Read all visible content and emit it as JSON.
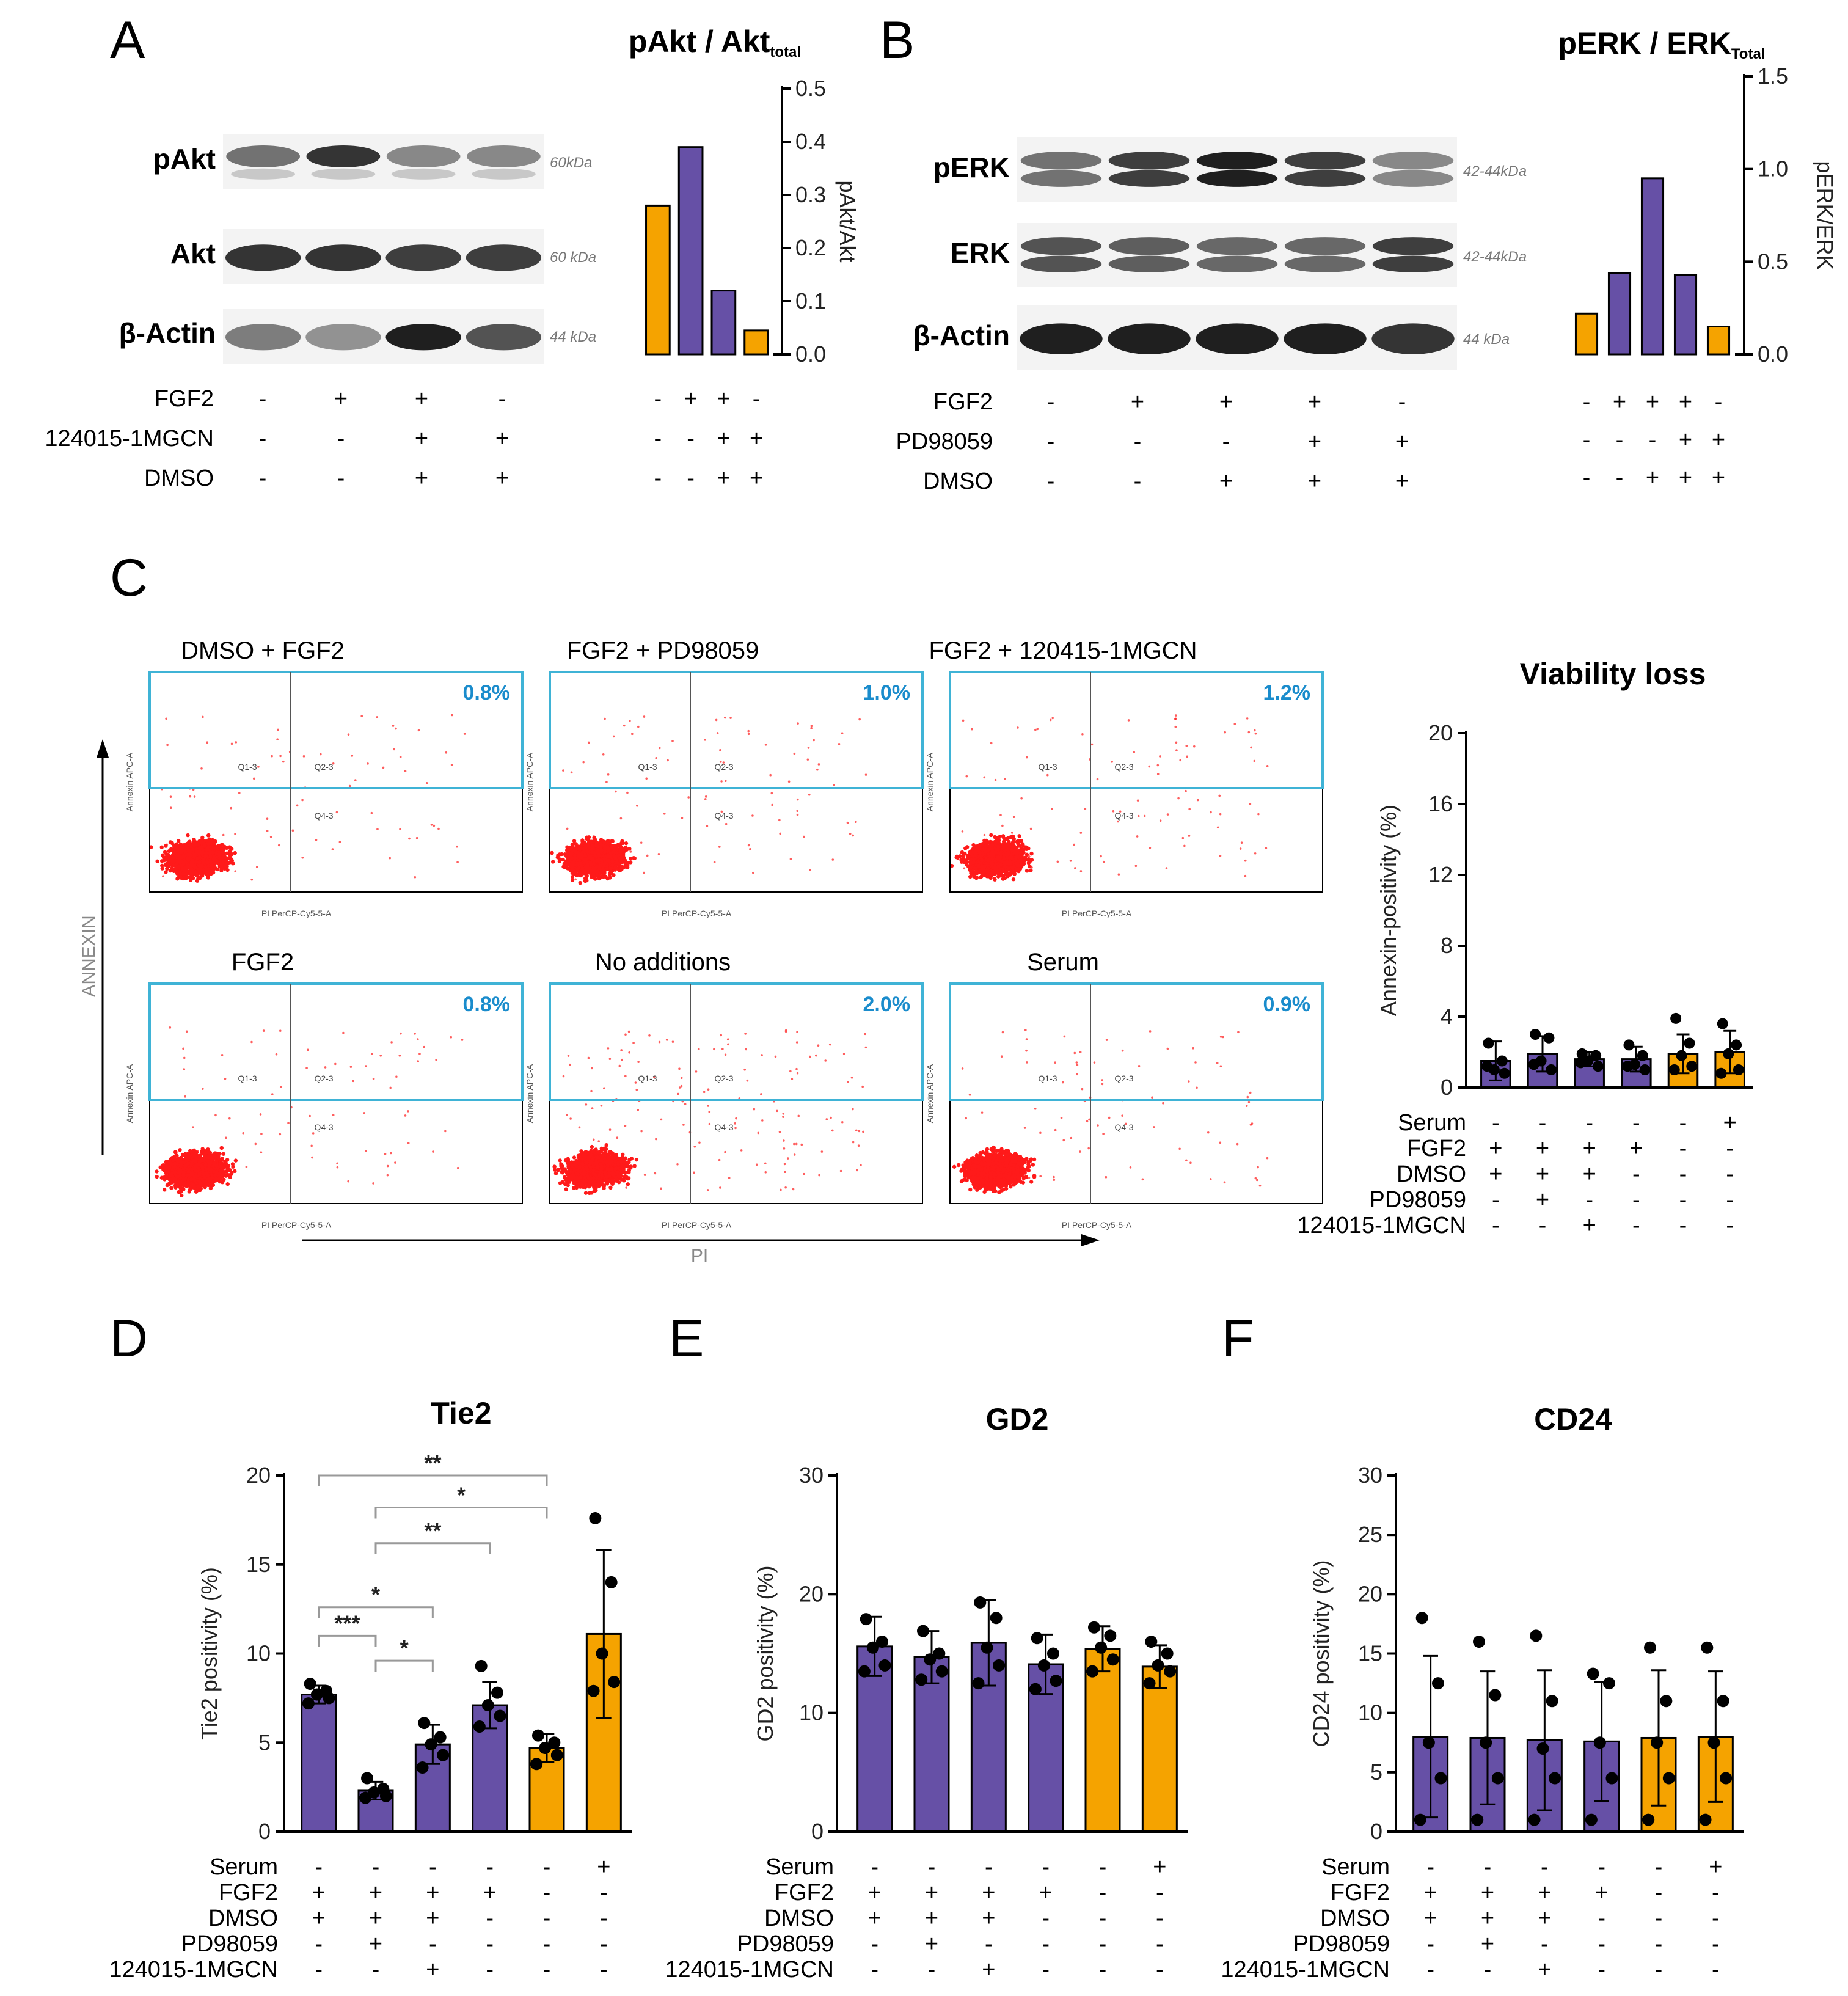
{
  "chart_data": [
    {
      "panel": "A",
      "type": "bar",
      "title_main": "pAkt / Akt",
      "title_sub": "total",
      "ylabel": "pAkt/Akt",
      "ylim": [
        0,
        0.5
      ],
      "yticks": [
        "0.0",
        "0.1",
        "0.2",
        "0.3",
        "0.4",
        "0.5"
      ],
      "values": [
        0.28,
        0.39,
        0.12,
        0.045
      ],
      "colors": [
        "#f5a300",
        "#6650a6",
        "#6650a6",
        "#f5a300"
      ],
      "conditions": [
        {
          "label": "FGF2",
          "signs": [
            "-",
            "+",
            "+",
            "-"
          ]
        },
        {
          "label": "124015-1MGCN",
          "signs": [
            "-",
            "-",
            "+",
            "+"
          ]
        },
        {
          "label": "DMSO",
          "signs": [
            "-",
            "-",
            "+",
            "+"
          ]
        }
      ],
      "blot_bands": [
        {
          "name": "pAkt",
          "kda": "60kDa"
        },
        {
          "name": "Akt",
          "kda": "60 kDa"
        },
        {
          "name": "β-Actin",
          "kda": "44 kDa"
        }
      ]
    },
    {
      "panel": "B",
      "type": "bar",
      "title_main": "pERK / ERK",
      "title_sub": "Total",
      "ylabel": "pERK/ERK",
      "ylim": [
        0,
        1.5
      ],
      "yticks": [
        "0.0",
        "0.5",
        "1.0",
        "1.5"
      ],
      "values": [
        0.22,
        0.44,
        0.95,
        0.43,
        0.15
      ],
      "colors": [
        "#f5a300",
        "#6650a6",
        "#6650a6",
        "#6650a6",
        "#f5a300"
      ],
      "conditions": [
        {
          "label": "FGF2",
          "signs": [
            "-",
            "+",
            "+",
            "+",
            "-"
          ]
        },
        {
          "label": "PD98059",
          "signs": [
            "-",
            "-",
            "-",
            "+",
            "+"
          ]
        },
        {
          "label": "DMSO",
          "signs": [
            "-",
            "-",
            "+",
            "+",
            "+"
          ]
        }
      ],
      "blot_bands": [
        {
          "name": "pERK",
          "kda": "42-44kDa"
        },
        {
          "name": "ERK",
          "kda": "42-44kDa"
        },
        {
          "name": "β-Actin",
          "kda": "44 kDa"
        }
      ]
    },
    {
      "panel": "C",
      "type": "bar",
      "title": "Viability loss",
      "ylabel": "Annexin-positivity (%)",
      "ylim": [
        0,
        20
      ],
      "yticks": [
        "0",
        "4",
        "8",
        "12",
        "16",
        "20"
      ],
      "values": [
        1.5,
        1.9,
        1.6,
        1.6,
        1.9,
        2.0
      ],
      "errors": [
        1.1,
        1.0,
        0.4,
        0.7,
        1.1,
        1.2
      ],
      "points": [
        [
          2.5,
          1.5,
          1.0,
          0.8,
          1.2
        ],
        [
          3.0,
          2.8,
          1.5,
          1.0,
          1.3
        ],
        [
          1.9,
          1.8,
          1.5,
          1.2,
          1.4
        ],
        [
          2.4,
          1.8,
          1.3,
          1.0,
          1.2
        ],
        [
          3.9,
          2.5,
          1.8,
          1.2,
          1.0
        ],
        [
          3.6,
          2.4,
          1.9,
          1.0,
          0.8
        ]
      ],
      "colors": [
        "#6650a6",
        "#6650a6",
        "#6650a6",
        "#6650a6",
        "#f5a300",
        "#f5a300"
      ],
      "conditions": [
        {
          "label": "Serum",
          "signs": [
            "-",
            "-",
            "-",
            "-",
            "-",
            "+"
          ]
        },
        {
          "label": "FGF2",
          "signs": [
            "+",
            "+",
            "+",
            "+",
            "-",
            "-"
          ]
        },
        {
          "label": "DMSO",
          "signs": [
            "+",
            "+",
            "+",
            "-",
            "-",
            "-"
          ]
        },
        {
          "label": "PD98059",
          "signs": [
            "-",
            "+",
            "-",
            "-",
            "-",
            "-"
          ]
        },
        {
          "label": "124015-1MGCN",
          "signs": [
            "-",
            "-",
            "+",
            "-",
            "-",
            "-"
          ]
        }
      ]
    },
    {
      "panel": "D",
      "type": "bar",
      "title": "Tie2",
      "ylabel": "Tie2 positivity (%)",
      "ylim": [
        0,
        20
      ],
      "yticks": [
        "0",
        "5",
        "10",
        "15",
        "20"
      ],
      "values": [
        7.7,
        2.3,
        4.9,
        7.1,
        4.7,
        11.1
      ],
      "errors": [
        0.5,
        0.5,
        1.1,
        1.3,
        0.8,
        4.7
      ],
      "points": [
        [
          8.3,
          7.9,
          7.7,
          7.5,
          7.2
        ],
        [
          3.0,
          2.4,
          2.2,
          2.0,
          1.9
        ],
        [
          6.1,
          5.3,
          4.9,
          4.3,
          3.6
        ],
        [
          9.3,
          7.8,
          7.1,
          6.5,
          5.9
        ],
        [
          5.4,
          5.0,
          4.7,
          4.3,
          3.8
        ],
        [
          17.6,
          14.0,
          10.0,
          8.4,
          7.9
        ]
      ],
      "colors": [
        "#6650a6",
        "#6650a6",
        "#6650a6",
        "#6650a6",
        "#f5a300",
        "#f5a300"
      ],
      "significance": [
        {
          "from": 0,
          "to": 4,
          "label": "**",
          "level": 20
        },
        {
          "from": 1,
          "to": 4,
          "label": "*",
          "level": 18.2
        },
        {
          "from": 1,
          "to": 3,
          "label": "**",
          "level": 16.2
        },
        {
          "from": 0,
          "to": 2,
          "label": "*",
          "level": 12.6
        },
        {
          "from": 0,
          "to": 1,
          "label": "***",
          "level": 11.0
        },
        {
          "from": 1,
          "to": 2,
          "label": "*",
          "level": 9.6
        }
      ],
      "conditions": [
        {
          "label": "Serum",
          "signs": [
            "-",
            "-",
            "-",
            "-",
            "-",
            "+"
          ]
        },
        {
          "label": "FGF2",
          "signs": [
            "+",
            "+",
            "+",
            "+",
            "-",
            "-"
          ]
        },
        {
          "label": "DMSO",
          "signs": [
            "+",
            "+",
            "+",
            "-",
            "-",
            "-"
          ]
        },
        {
          "label": "PD98059",
          "signs": [
            "-",
            "+",
            "-",
            "-",
            "-",
            "-"
          ]
        },
        {
          "label": "124015-1MGCN",
          "signs": [
            "-",
            "-",
            "+",
            "-",
            "-",
            "-"
          ]
        }
      ]
    },
    {
      "panel": "E",
      "type": "bar",
      "title": "GD2",
      "ylabel": "GD2 positivity (%)",
      "ylim": [
        0,
        30
      ],
      "yticks": [
        "0",
        "10",
        "20",
        "30"
      ],
      "values": [
        15.6,
        14.7,
        15.9,
        14.1,
        15.4,
        13.9
      ],
      "errors": [
        2.5,
        2.2,
        3.6,
        2.5,
        1.9,
        1.8
      ],
      "points": [
        [
          17.9,
          16.0,
          15.5,
          14.0,
          13.5
        ],
        [
          16.9,
          15.0,
          14.5,
          13.5,
          12.8
        ],
        [
          19.3,
          18.0,
          15.5,
          14.0,
          12.5
        ],
        [
          16.3,
          15.0,
          14.0,
          12.7,
          12.0
        ],
        [
          17.2,
          16.5,
          15.5,
          14.5,
          13.5
        ],
        [
          16.0,
          15.0,
          14.0,
          13.5,
          12.5
        ]
      ],
      "colors": [
        "#6650a6",
        "#6650a6",
        "#6650a6",
        "#6650a6",
        "#f5a300",
        "#f5a300"
      ],
      "conditions": [
        {
          "label": "Serum",
          "signs": [
            "-",
            "-",
            "-",
            "-",
            "-",
            "+"
          ]
        },
        {
          "label": "FGF2",
          "signs": [
            "+",
            "+",
            "+",
            "+",
            "-",
            "-"
          ]
        },
        {
          "label": "DMSO",
          "signs": [
            "+",
            "+",
            "+",
            "-",
            "-",
            "-"
          ]
        },
        {
          "label": "PD98059",
          "signs": [
            "-",
            "+",
            "-",
            "-",
            "-",
            "-"
          ]
        },
        {
          "label": "124015-1MGCN",
          "signs": [
            "-",
            "-",
            "+",
            "-",
            "-",
            "-"
          ]
        }
      ]
    },
    {
      "panel": "F",
      "type": "bar",
      "title": "CD24",
      "ylabel": "CD24 positivity (%)",
      "ylim": [
        0,
        30
      ],
      "yticks": [
        "0",
        "5",
        "10",
        "15",
        "20",
        "25",
        "30"
      ],
      "values": [
        8.0,
        7.9,
        7.7,
        7.6,
        7.9,
        8.0
      ],
      "errors": [
        6.8,
        5.6,
        5.9,
        5.0,
        5.7,
        5.5
      ],
      "points": [
        [
          18.0,
          12.5,
          7.5,
          4.5,
          1.0
        ],
        [
          16.0,
          11.5,
          7.5,
          4.5,
          1.0
        ],
        [
          16.5,
          11.0,
          7.0,
          4.5,
          1.0
        ],
        [
          13.3,
          12.5,
          7.5,
          4.5,
          1.0
        ],
        [
          15.5,
          11.0,
          7.5,
          4.5,
          1.0
        ],
        [
          15.5,
          11.0,
          7.5,
          4.5,
          1.0
        ]
      ],
      "colors": [
        "#6650a6",
        "#6650a6",
        "#6650a6",
        "#6650a6",
        "#f5a300",
        "#f5a300"
      ],
      "conditions": [
        {
          "label": "Serum",
          "signs": [
            "-",
            "-",
            "-",
            "-",
            "-",
            "+"
          ]
        },
        {
          "label": "FGF2",
          "signs": [
            "+",
            "+",
            "+",
            "+",
            "-",
            "-"
          ]
        },
        {
          "label": "DMSO",
          "signs": [
            "+",
            "+",
            "+",
            "-",
            "-",
            "-"
          ]
        },
        {
          "label": "PD98059",
          "signs": [
            "-",
            "+",
            "-",
            "-",
            "-",
            "-"
          ]
        },
        {
          "label": "124015-1MGCN",
          "signs": [
            "-",
            "-",
            "+",
            "-",
            "-",
            "-"
          ]
        }
      ]
    }
  ],
  "panel_labels": [
    "A",
    "B",
    "C",
    "D",
    "E",
    "F"
  ],
  "flow_cytometry": {
    "y_axis_label": "ANNEXIN",
    "x_axis_label": "PI",
    "plot_y_label": "Annexin APC-A",
    "plot_x_label": "PI PerCP-Cy5-5-A",
    "gates": [
      "Q1-3",
      "Q2-3",
      "Q4-3"
    ],
    "plots": [
      {
        "title": "DMSO + FGF2",
        "percent": "0.8%",
        "spread": 0.5
      },
      {
        "title": "FGF2 + PD98059",
        "percent": "1.0%",
        "spread": 0.6
      },
      {
        "title": "FGF2 + 120415-1MGCN",
        "percent": "1.2%",
        "spread": 0.7
      },
      {
        "title": "FGF2",
        "percent": "0.8%",
        "spread": 0.5
      },
      {
        "title": "No additions",
        "percent": "2.0%",
        "spread": 1.0
      },
      {
        "title": "Serum",
        "percent": "0.9%",
        "spread": 0.55
      }
    ]
  },
  "colors": {
    "purple": "#6650a6",
    "orange": "#f5a300",
    "gate": "#3fb3d6",
    "dots": "#ff1a1a"
  }
}
